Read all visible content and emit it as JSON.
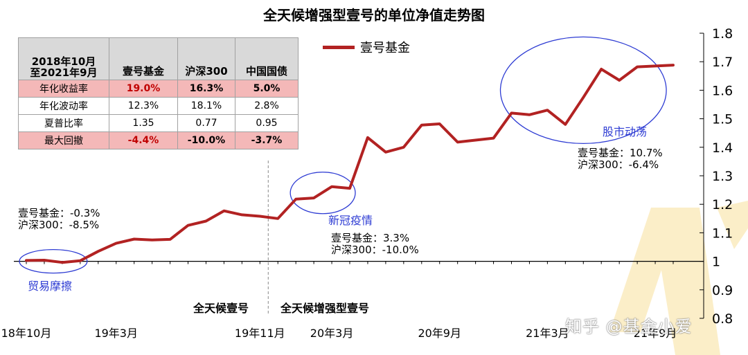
{
  "page_title": "全天候增强型壹号的单位净值走势图",
  "chart_data": {
    "type": "line",
    "title": "全天候增强型壹号的单位净值走势图",
    "series": [
      {
        "name": "壹号基金",
        "color": "#b22222",
        "points": [
          [
            "2018-10",
            1.003
          ],
          [
            "2018-11",
            1.004
          ],
          [
            "2018-12",
            0.996
          ],
          [
            "2019-01",
            1.002
          ],
          [
            "2019-02",
            1.035
          ],
          [
            "2019-03",
            1.063
          ],
          [
            "2019-04",
            1.078
          ],
          [
            "2019-05",
            1.075
          ],
          [
            "2019-06",
            1.077
          ],
          [
            "2019-07",
            1.126
          ],
          [
            "2019-08",
            1.141
          ],
          [
            "2019-09",
            1.177
          ],
          [
            "2019-10",
            1.163
          ],
          [
            "2019-11",
            1.158
          ],
          [
            "2019-12",
            1.15
          ],
          [
            "2020-01",
            1.218
          ],
          [
            "2020-02",
            1.222
          ],
          [
            "2020-03",
            1.262
          ],
          [
            "2020-04",
            1.256
          ],
          [
            "2020-05",
            1.434
          ],
          [
            "2020-06",
            1.383
          ],
          [
            "2020-07",
            1.4
          ],
          [
            "2020-08",
            1.478
          ],
          [
            "2020-09",
            1.482
          ],
          [
            "2020-10",
            1.418
          ],
          [
            "2020-11",
            1.425
          ],
          [
            "2020-12",
            1.432
          ],
          [
            "2021-01",
            1.52
          ],
          [
            "2021-02",
            1.514
          ],
          [
            "2021-03",
            1.53
          ],
          [
            "2021-04",
            1.48
          ],
          [
            "2021-05",
            1.575
          ],
          [
            "2021-06",
            1.674
          ],
          [
            "2021-07",
            1.635
          ],
          [
            "2021-08",
            1.682
          ],
          [
            "2021-09",
            1.685
          ],
          [
            "2021-10",
            1.688
          ]
        ]
      }
    ],
    "x_ticks": [
      {
        "month": "2018-10",
        "label": "18年10月"
      },
      {
        "month": "2019-03",
        "label": "19年3月"
      },
      {
        "month": "2019-11",
        "label": "19年11月"
      },
      {
        "month": "2020-03",
        "label": "20年3月"
      },
      {
        "month": "2020-09",
        "label": "20年9月"
      },
      {
        "month": "2021-03",
        "label": "21年3月"
      },
      {
        "month": "2021-09",
        "label": "21年9月"
      }
    ],
    "ylim": [
      0.8,
      1.8
    ],
    "y_ticks": [
      "0.8",
      "0.9",
      "1",
      "1.1",
      "1.2",
      "1.3",
      "1.4",
      "1.5",
      "1.6",
      "1.7",
      "1.8"
    ],
    "y_axis_side": "right",
    "baseline": 1.0,
    "divider_month": "2019-11",
    "legend": {
      "label": "壹号基金",
      "position": "top"
    },
    "highlights": [
      {
        "name": "贸易摩擦",
        "x_from": "2018-10",
        "x_to": "2019-01",
        "y_center": 1.0
      },
      {
        "name": "新冠疫情",
        "x_from": "2020-01",
        "x_to": "2020-04",
        "y_center": 1.24
      },
      {
        "name": "股市动荡",
        "x_from": "2021-01",
        "x_to": "2021-09",
        "y_center": 1.6
      }
    ]
  },
  "stats_table": {
    "header": {
      "period_line1": "2018年10月",
      "period_line2": "至2021年9月",
      "cols": [
        "壹号基金",
        "沪深300",
        "中国国债"
      ]
    },
    "rows": [
      {
        "label": "年化收益率",
        "values": [
          "19.0%",
          "16.3%",
          "5.0%"
        ],
        "highlight": true
      },
      {
        "label": "年化波动率",
        "values": [
          "12.3%",
          "18.1%",
          "2.8%"
        ],
        "highlight": false
      },
      {
        "label": "夏普比率",
        "values": [
          "1.35",
          "0.77",
          "0.95"
        ],
        "highlight": false
      },
      {
        "label": "最大回撤",
        "values": [
          "-4.4%",
          "-10.0%",
          "-3.7%"
        ],
        "highlight": true
      }
    ]
  },
  "annotations": {
    "trade": {
      "event": "贸易摩擦",
      "line1": "壹号基金：-0.3%",
      "line2": "沪深300：-8.5%"
    },
    "covid": {
      "event": "新冠疫情",
      "line1": "壹号基金：3.3%",
      "line2": "沪深300：-10.0%"
    },
    "market": {
      "event": "股市动荡",
      "line1": "壹号基金：10.7%",
      "line2": "沪深300：-6.4%"
    }
  },
  "fund_labels": {
    "before": "全天候壹号",
    "after": "全天候增强型壹号"
  },
  "watermark": "知乎 @基金小爱",
  "colors": {
    "line": "#b22222",
    "event": "#2d3bd3",
    "highlight_row": "#f4b8b8",
    "header": "#d9d9d9"
  }
}
